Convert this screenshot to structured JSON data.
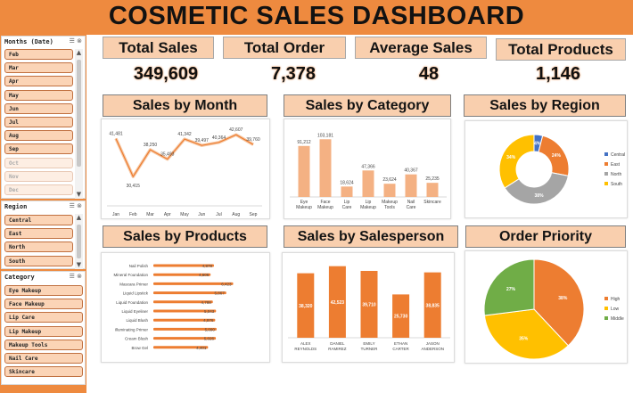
{
  "header": {
    "title": "COSMETIC SALES DASHBOARD"
  },
  "kpis": [
    {
      "label": "Total Sales",
      "value": "349,609"
    },
    {
      "label": "Total Order",
      "value": "7,378"
    },
    {
      "label": "Average Sales",
      "value": "48"
    },
    {
      "label": "Total Products",
      "value": "1,146"
    }
  ],
  "sections": {
    "sales_by_month": "Sales by Month",
    "sales_by_category": "Sales by Category",
    "sales_by_region": "Sales by Region",
    "sales_by_products": "Sales by Products",
    "sales_by_salesperson": "Sales by Salesperson",
    "order_priority": "Order Priority"
  },
  "slicers": {
    "months": {
      "title": "Months (Date)",
      "items": [
        {
          "label": "Feb",
          "selected": true
        },
        {
          "label": "Mar",
          "selected": true
        },
        {
          "label": "Apr",
          "selected": true
        },
        {
          "label": "May",
          "selected": true
        },
        {
          "label": "Jun",
          "selected": true
        },
        {
          "label": "Jul",
          "selected": true
        },
        {
          "label": "Aug",
          "selected": true
        },
        {
          "label": "Sep",
          "selected": true
        },
        {
          "label": "Oct",
          "selected": false
        },
        {
          "label": "Nov",
          "selected": false
        },
        {
          "label": "Dec",
          "selected": false
        }
      ]
    },
    "region": {
      "title": "Region",
      "items": [
        {
          "label": "Central",
          "selected": true
        },
        {
          "label": "East",
          "selected": true
        },
        {
          "label": "North",
          "selected": true
        },
        {
          "label": "South",
          "selected": true
        }
      ]
    },
    "category": {
      "title": "Category",
      "items": [
        {
          "label": "Eye Makeup",
          "selected": true
        },
        {
          "label": "Face Makeup",
          "selected": true
        },
        {
          "label": "Lip Care",
          "selected": true
        },
        {
          "label": "Lip Makeup",
          "selected": true
        },
        {
          "label": "Makeup Tools",
          "selected": true
        },
        {
          "label": "Nail Care",
          "selected": true
        },
        {
          "label": "Skincare",
          "selected": true
        }
      ]
    },
    "tools": "☰ ⊗"
  },
  "colors": {
    "accent": "#ee8a3f",
    "label_bg": "#f9cfae",
    "central": "#4472c4",
    "east": "#ed7d31",
    "north": "#a5a5a5",
    "south": "#ffc000",
    "high": "#ed7d31",
    "low": "#ffc000",
    "middle": "#70ad47"
  },
  "chart_data": [
    {
      "id": "sales_by_month",
      "type": "line",
      "title": "Sales by Month",
      "categories": [
        "Jan",
        "Feb",
        "Mar",
        "Apr",
        "May",
        "Jun",
        "Jul",
        "Aug",
        "Sep"
      ],
      "values": [
        41481,
        30415,
        38250,
        35493,
        41342,
        39497,
        40364,
        42607,
        39760
      ],
      "value_labels": [
        "41,481",
        "30,415",
        "38,250",
        "35,493",
        "41,342",
        "39,497",
        "40,364",
        "42,607",
        "39,760"
      ],
      "ylim": [
        25000,
        45000
      ]
    },
    {
      "id": "sales_by_category",
      "type": "bar",
      "title": "Sales by Category",
      "categories": [
        "Eye Makeup",
        "Face Makeup",
        "Lip Care",
        "Lip Makeup",
        "Makeup Tools",
        "Nail Care",
        "Skincare"
      ],
      "values": [
        91212,
        103181,
        18624,
        47366,
        23624,
        40367,
        25235
      ],
      "value_labels": [
        "91,212",
        "103,181",
        "18,624",
        "47,366",
        "23,624",
        "40,367",
        "25,235"
      ],
      "ylim": [
        0,
        110000
      ]
    },
    {
      "id": "sales_by_region",
      "type": "pie",
      "title": "Sales by Region",
      "categories": [
        "Central",
        "East",
        "North",
        "South"
      ],
      "values": [
        4,
        24,
        38,
        34
      ],
      "value_labels": [
        "4%",
        "24%",
        "38%",
        "34%"
      ]
    },
    {
      "id": "sales_by_products",
      "type": "bar",
      "orientation": "horizontal",
      "title": "Sales by Products",
      "categories": [
        "Nail Polish",
        "Mineral Foundation",
        "Mascara Primer",
        "Liquid Lipstick",
        "Liquid Foundation",
        "Liquid Eyeliner",
        "Liquid Blush",
        "Illuminating Primer",
        "Cream Blush",
        "Brow Gel"
      ],
      "values": [
        4878,
        4606,
        6423,
        5867,
        4788,
        5043,
        4976,
        5090,
        5026,
        4401
      ],
      "value_labels": [
        "4,878",
        "4,606",
        "6,423",
        "5,867",
        "4,788",
        "5,043",
        "4,976",
        "5,090",
        "5,026",
        "4,401"
      ],
      "xlim": [
        0,
        6600
      ]
    },
    {
      "id": "sales_by_salesperson",
      "type": "bar",
      "title": "Sales by Salesperson",
      "categories": [
        "ALEX REYNOLDS",
        "DANIEL RAMIREZ",
        "EMILY TURNER",
        "ETHAN CARTER",
        "JASON ANDERSON"
      ],
      "category_lines": [
        [
          "ALEX",
          "REYNOLDS"
        ],
        [
          "DANIEL",
          "RAMIREZ"
        ],
        [
          "EMILY",
          "TURNER"
        ],
        [
          "ETHAN",
          "CARTER"
        ],
        [
          "JASON",
          "ANDERSON"
        ]
      ],
      "values": [
        38320,
        42523,
        39710,
        25730,
        38835
      ],
      "value_labels": [
        "38,320",
        "42,523",
        "39,710",
        "25,730",
        "38,835"
      ],
      "ylim": [
        0,
        45000
      ]
    },
    {
      "id": "order_priority",
      "type": "pie",
      "title": "Order Priority",
      "categories": [
        "High",
        "Low",
        "Middle"
      ],
      "values": [
        38,
        35,
        27
      ],
      "value_labels": [
        "38%",
        "35%",
        "27%"
      ]
    }
  ]
}
